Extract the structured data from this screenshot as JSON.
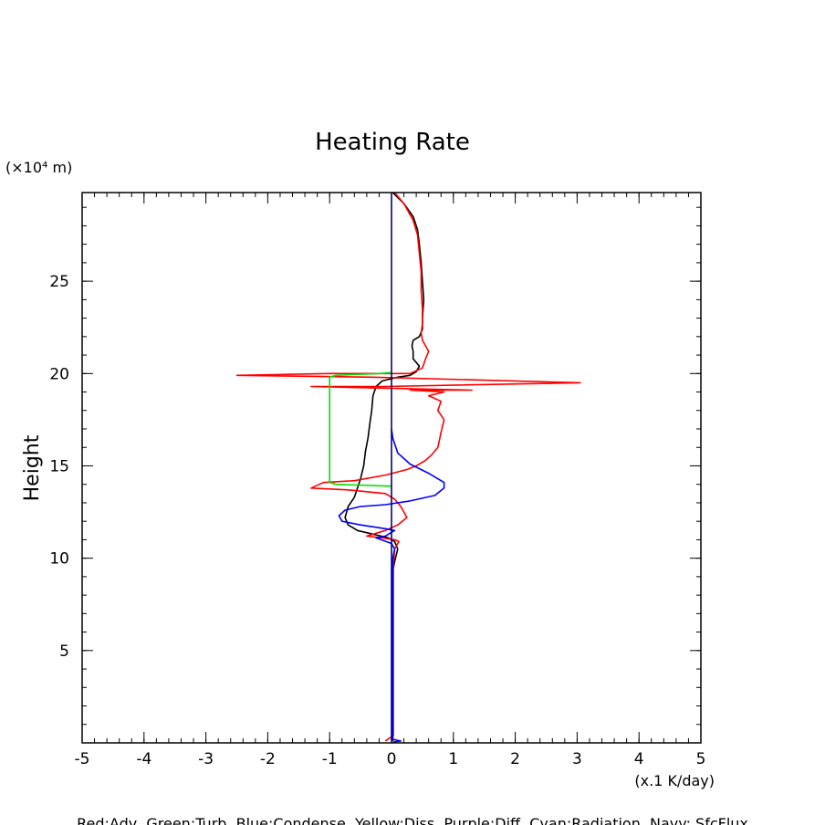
{
  "chart_data": {
    "type": "line",
    "title": "Heating Rate",
    "ylabel": "Height",
    "yunit": "(×10⁴ m)",
    "xunit": "(x.1 K/day)",
    "footer": "Red:Adv, Green:Turb, Blue:Condense, Yellow:Diss, Purple:Diff, Cyan:Radiation, Navy: SfcFlux",
    "xlim": [
      -5,
      5
    ],
    "ylim": [
      0,
      29.8
    ],
    "xticks": [
      "-5",
      "-4",
      "-3",
      "-2",
      "-1",
      "0",
      "1",
      "2",
      "3",
      "4",
      "5"
    ],
    "xtick_values": [
      -5,
      -4,
      -3,
      -2,
      -1,
      0,
      1,
      2,
      3,
      4,
      5
    ],
    "yticks": [
      "5",
      "10",
      "15",
      "20",
      "25"
    ],
    "ytick_values": [
      5,
      10,
      15,
      20,
      25
    ],
    "colors": {
      "Adv": "#ff0000",
      "Turb": "#00e000",
      "Condense": "#0000ff",
      "SfcFlux": "#000080",
      "Total": "#000000"
    },
    "series": [
      {
        "key": "Total",
        "color": "#000000",
        "points": [
          [
            0.02,
            0.1
          ],
          [
            0.02,
            5
          ],
          [
            0.02,
            9.3
          ],
          [
            0.05,
            9.8
          ],
          [
            0.1,
            10.5
          ],
          [
            0.05,
            10.9
          ],
          [
            -0.05,
            11.1
          ],
          [
            -0.3,
            11.3
          ],
          [
            -0.55,
            11.5
          ],
          [
            -0.7,
            11.8
          ],
          [
            -0.75,
            12.2
          ],
          [
            -0.7,
            12.8
          ],
          [
            -0.6,
            13.3
          ],
          [
            -0.55,
            13.8
          ],
          [
            -0.5,
            14.3
          ],
          [
            -0.45,
            15
          ],
          [
            -0.42,
            15.8
          ],
          [
            -0.38,
            16.5
          ],
          [
            -0.35,
            17.3
          ],
          [
            -0.32,
            18
          ],
          [
            -0.3,
            18.8
          ],
          [
            -0.25,
            19.3
          ],
          [
            -0.15,
            19.6
          ],
          [
            0.1,
            19.8
          ],
          [
            0.3,
            19.9
          ],
          [
            0.4,
            20.1
          ],
          [
            0.45,
            20.4
          ],
          [
            0.35,
            20.8
          ],
          [
            0.35,
            21.2
          ],
          [
            0.33,
            21.5
          ],
          [
            0.35,
            21.8
          ],
          [
            0.45,
            22
          ],
          [
            0.5,
            22.4
          ],
          [
            0.5,
            23
          ],
          [
            0.52,
            24
          ],
          [
            0.5,
            25
          ],
          [
            0.48,
            26
          ],
          [
            0.45,
            27
          ],
          [
            0.42,
            27.8
          ],
          [
            0.35,
            28.5
          ],
          [
            0.2,
            29.2
          ],
          [
            0.02,
            29.8
          ]
        ]
      },
      {
        "key": "Adv",
        "color": "#ff0000",
        "points": [
          [
            -0.1,
            0.1
          ],
          [
            0.03,
            0.4
          ],
          [
            0.03,
            5
          ],
          [
            0.03,
            9.5
          ],
          [
            0.05,
            10.5
          ],
          [
            0.12,
            10.9
          ],
          [
            0.05,
            11
          ],
          [
            -0.15,
            11.1
          ],
          [
            -0.4,
            11.2
          ],
          [
            -0.1,
            11.5
          ],
          [
            0.1,
            11.8
          ],
          [
            0.25,
            12.2
          ],
          [
            0.15,
            12.8
          ],
          [
            0.05,
            13.2
          ],
          [
            -0.1,
            13.5
          ],
          [
            -0.7,
            13.7
          ],
          [
            -1.3,
            13.8
          ],
          [
            -1.1,
            14.1
          ],
          [
            -0.6,
            14.2
          ],
          [
            -0.1,
            14.5
          ],
          [
            0.25,
            14.8
          ],
          [
            0.4,
            15
          ],
          [
            0.45,
            15.1
          ],
          [
            0.55,
            15.3
          ],
          [
            0.65,
            15.6
          ],
          [
            0.75,
            16
          ],
          [
            0.8,
            16.8
          ],
          [
            0.85,
            17.5
          ],
          [
            0.75,
            18
          ],
          [
            0.8,
            18.5
          ],
          [
            0.6,
            18.8
          ],
          [
            0.85,
            19
          ],
          [
            0.3,
            19.1
          ],
          [
            1.3,
            19.1
          ],
          [
            -1.3,
            19.3
          ],
          [
            -0.1,
            19.3
          ],
          [
            3.05,
            19.5
          ],
          [
            -0.3,
            19.8
          ],
          [
            -2.5,
            19.9
          ],
          [
            -1.0,
            20
          ],
          [
            0.3,
            20
          ],
          [
            0.5,
            20.3
          ],
          [
            0.55,
            20.8
          ],
          [
            0.6,
            21.2
          ],
          [
            0.55,
            21.5
          ],
          [
            0.5,
            21.8
          ],
          [
            0.48,
            22.2
          ],
          [
            0.5,
            22.7
          ],
          [
            0.5,
            23.5
          ],
          [
            0.48,
            24.5
          ],
          [
            0.48,
            25.5
          ],
          [
            0.45,
            26.5
          ],
          [
            0.42,
            27.5
          ],
          [
            0.35,
            28.3
          ],
          [
            0.2,
            29.2
          ],
          [
            0.05,
            29.8
          ]
        ]
      },
      {
        "key": "Turb",
        "color": "#00e000",
        "points": [
          [
            0,
            13.9
          ],
          [
            -0.9,
            14
          ],
          [
            -1.0,
            14.1
          ],
          [
            -1.0,
            17
          ],
          [
            -1.0,
            19.8
          ],
          [
            -0.9,
            19.9
          ],
          [
            -0.2,
            20
          ],
          [
            0,
            20.05
          ]
        ]
      },
      {
        "key": "Condense",
        "color": "#0000ff",
        "points": [
          [
            0.02,
            0.05
          ],
          [
            0.15,
            0.1
          ],
          [
            0.02,
            0.2
          ],
          [
            0.02,
            5
          ],
          [
            0.02,
            10
          ],
          [
            0.05,
            10.5
          ],
          [
            0.0,
            10.8
          ],
          [
            -0.25,
            11.1
          ],
          [
            -0.1,
            11.2
          ],
          [
            0.05,
            11.5
          ],
          [
            -0.1,
            11.6
          ],
          [
            -0.5,
            11.8
          ],
          [
            -0.8,
            12
          ],
          [
            -0.85,
            12.3
          ],
          [
            -0.75,
            12.6
          ],
          [
            -0.5,
            12.8
          ],
          [
            -0.1,
            12.9
          ],
          [
            0.3,
            13.1
          ],
          [
            0.7,
            13.4
          ],
          [
            0.85,
            13.8
          ],
          [
            0.85,
            14.1
          ],
          [
            0.6,
            14.6
          ],
          [
            0.3,
            15.1
          ],
          [
            0.1,
            15.7
          ],
          [
            0.02,
            16.5
          ],
          [
            0.0,
            17
          ]
        ]
      },
      {
        "key": "SfcFlux",
        "color": "#000080",
        "points": [
          [
            0,
            0
          ],
          [
            0,
            29.8
          ]
        ]
      }
    ]
  }
}
